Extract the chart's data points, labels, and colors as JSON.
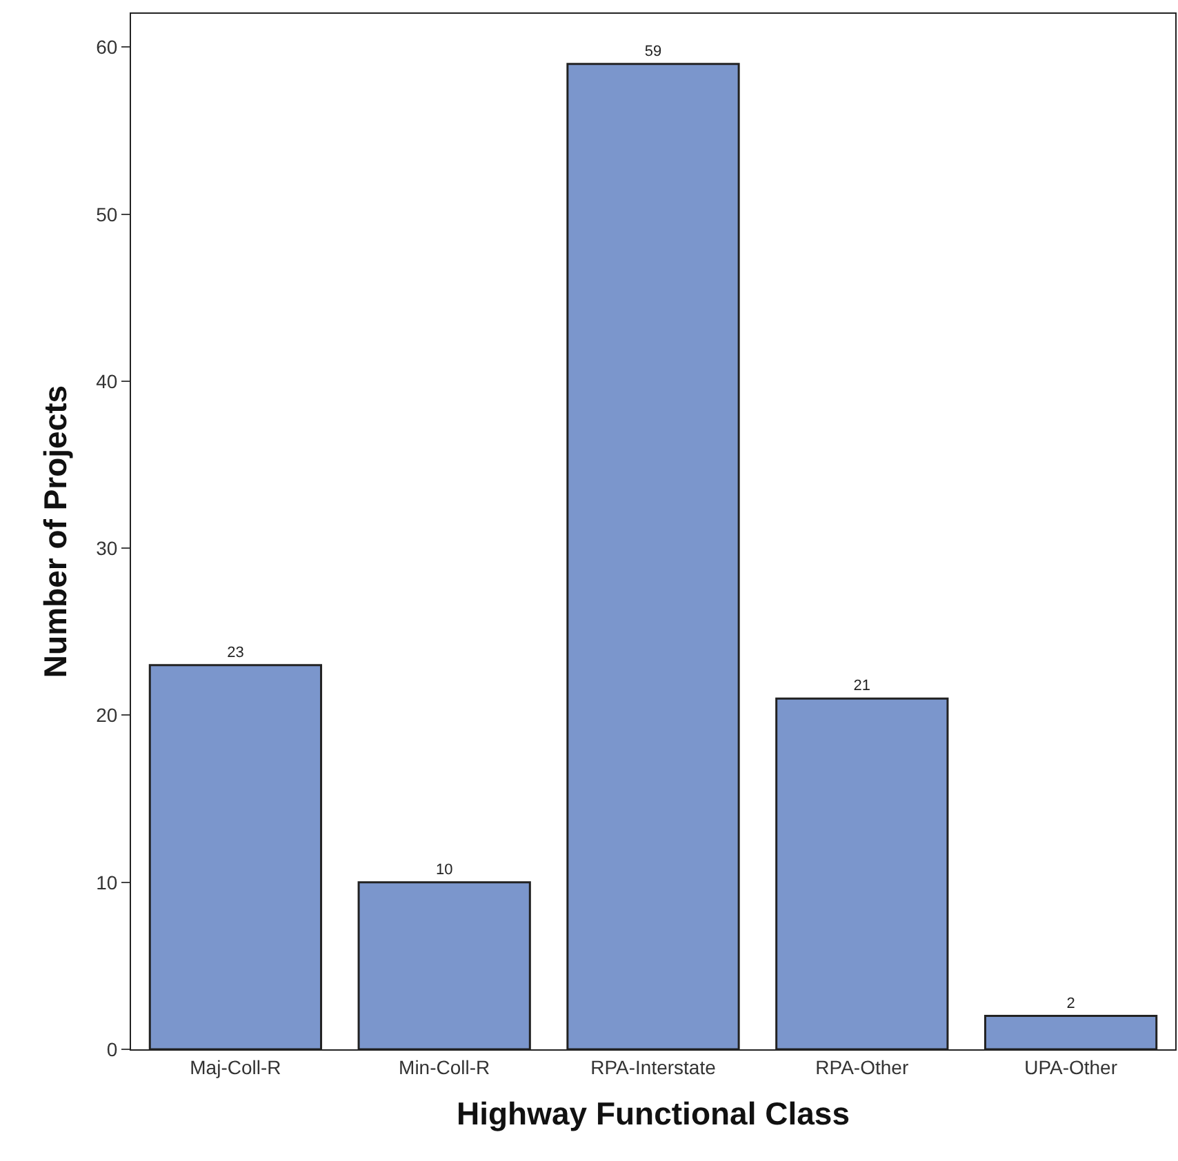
{
  "chart_data": {
    "type": "bar",
    "xlabel": "Highway Functional Class",
    "ylabel": "Number of Projects",
    "categories": [
      "Maj-Coll-R",
      "Min-Coll-R",
      "RPA-Interstate",
      "RPA-Other",
      "UPA-Other"
    ],
    "values": [
      23,
      10,
      59,
      21,
      2
    ],
    "color": "#7b96cc",
    "ylim": [
      0,
      62
    ],
    "yticks": [
      0,
      10,
      20,
      30,
      40,
      50,
      60
    ],
    "data_labels": true
  }
}
